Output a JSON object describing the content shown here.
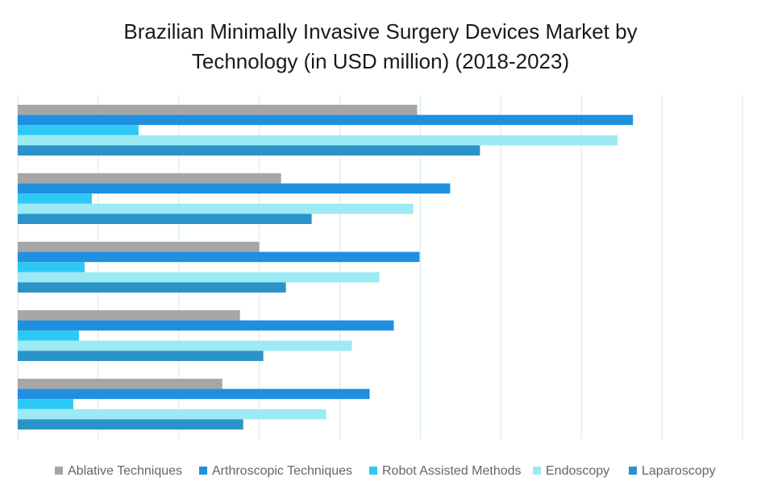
{
  "chart_data": {
    "type": "bar",
    "orientation": "horizontal",
    "title_lines": [
      "Brazilian Minimally Invasive Surgery Devices Market by",
      "Technology (in USD million) (2018-2023)"
    ],
    "categories": [
      "",
      "",
      "",
      "",
      ""
    ],
    "xlim": [
      0,
      90
    ],
    "grid": true,
    "legend_position": "bottom",
    "series": [
      {
        "name": "Ablative Techniques",
        "color": "#a6a6a6",
        "values": [
          49.6,
          32.7,
          30.0,
          27.6,
          25.4
        ]
      },
      {
        "name": "Arthroscopic Techniques",
        "color": "#1f8fe0",
        "values": [
          76.4,
          53.7,
          49.9,
          46.7,
          43.7
        ]
      },
      {
        "name": "Robot Assisted Methods",
        "color": "#2ec8f5",
        "values": [
          15.0,
          9.2,
          8.3,
          7.6,
          6.9
        ]
      },
      {
        "name": "Endoscopy",
        "color": "#9ceaf3",
        "values": [
          74.5,
          49.1,
          44.9,
          41.5,
          38.3
        ]
      },
      {
        "name": "Laparoscopy",
        "color": "#2a93c7",
        "values": [
          57.4,
          36.5,
          33.3,
          30.5,
          28.0
        ]
      }
    ]
  }
}
